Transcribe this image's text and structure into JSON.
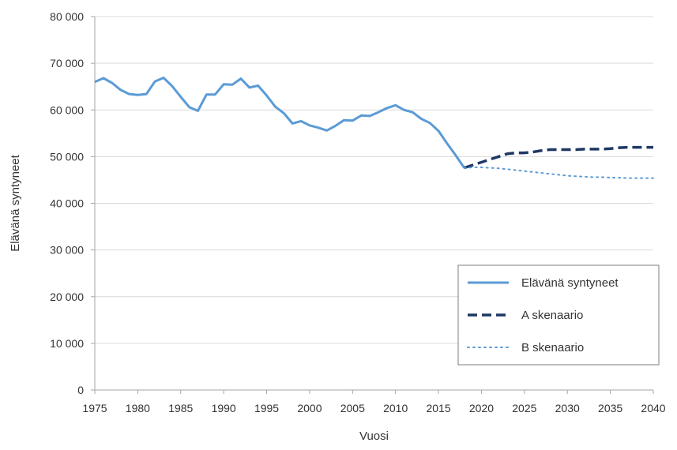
{
  "chart_data": {
    "type": "line",
    "xlabel": "Vuosi",
    "ylabel": "Elävänä syntyneet",
    "xlim": [
      1975,
      2040
    ],
    "ylim": [
      0,
      80000
    ],
    "x_ticks": [
      1975,
      1980,
      1985,
      1990,
      1995,
      2000,
      2005,
      2010,
      2015,
      2020,
      2025,
      2030,
      2035,
      2040
    ],
    "x_tick_labels": [
      "1975",
      "1980",
      "1985",
      "1990",
      "1995",
      "2000",
      "2005",
      "2010",
      "2015",
      "2020",
      "2025",
      "2030",
      "2035",
      "2040"
    ],
    "y_ticks": [
      0,
      10000,
      20000,
      30000,
      40000,
      50000,
      60000,
      70000,
      80000
    ],
    "y_tick_labels": [
      "0",
      "10 000",
      "20 000",
      "30 000",
      "40 000",
      "50 000",
      "60 000",
      "70 000",
      "80 000"
    ],
    "grid": true,
    "legend_position": "bottom-right",
    "series": [
      {
        "name": "Elävänä syntyneet",
        "style": "solid",
        "color": "#5b9bd5",
        "x": [
          1975,
          1976,
          1977,
          1978,
          1979,
          1980,
          1981,
          1982,
          1983,
          1984,
          1985,
          1986,
          1987,
          1988,
          1989,
          1990,
          1991,
          1992,
          1993,
          1994,
          1995,
          1996,
          1997,
          1998,
          1999,
          2000,
          2001,
          2002,
          2003,
          2004,
          2005,
          2006,
          2007,
          2008,
          2009,
          2010,
          2011,
          2012,
          2013,
          2014,
          2015,
          2016,
          2017,
          2018
        ],
        "y": [
          66000,
          66800,
          65800,
          64300,
          63400,
          63200,
          63400,
          66100,
          66900,
          65100,
          62800,
          60600,
          59800,
          63300,
          63300,
          65500,
          65400,
          66700,
          64800,
          65200,
          63100,
          60700,
          59300,
          57100,
          57600,
          56700,
          56200,
          55600,
          56600,
          57800,
          57700,
          58800,
          58700,
          59500,
          60400,
          61000,
          60000,
          59500,
          58100,
          57200,
          55500,
          52800,
          50300,
          47600
        ]
      },
      {
        "name": "A skenaario",
        "style": "dashed",
        "color": "#1f3864",
        "x": [
          2018,
          2019,
          2020,
          2021,
          2022,
          2023,
          2024,
          2025,
          2026,
          2027,
          2028,
          2029,
          2030,
          2031,
          2032,
          2033,
          2034,
          2035,
          2036,
          2037,
          2038,
          2039,
          2040
        ],
        "y": [
          47600,
          48200,
          48800,
          49400,
          50000,
          50600,
          50800,
          50800,
          51000,
          51300,
          51500,
          51500,
          51500,
          51500,
          51600,
          51600,
          51600,
          51700,
          51900,
          52000,
          52000,
          52000,
          52000
        ]
      },
      {
        "name": "B skenaario",
        "style": "dotted",
        "color": "#5b9bd5",
        "x": [
          2018,
          2019,
          2020,
          2021,
          2022,
          2023,
          2024,
          2025,
          2026,
          2027,
          2028,
          2029,
          2030,
          2031,
          2032,
          2033,
          2034,
          2035,
          2036,
          2037,
          2038,
          2039,
          2040
        ],
        "y": [
          47600,
          47700,
          47700,
          47600,
          47500,
          47300,
          47100,
          46900,
          46700,
          46500,
          46300,
          46100,
          45900,
          45800,
          45700,
          45600,
          45600,
          45500,
          45500,
          45400,
          45400,
          45400,
          45400
        ]
      }
    ]
  }
}
